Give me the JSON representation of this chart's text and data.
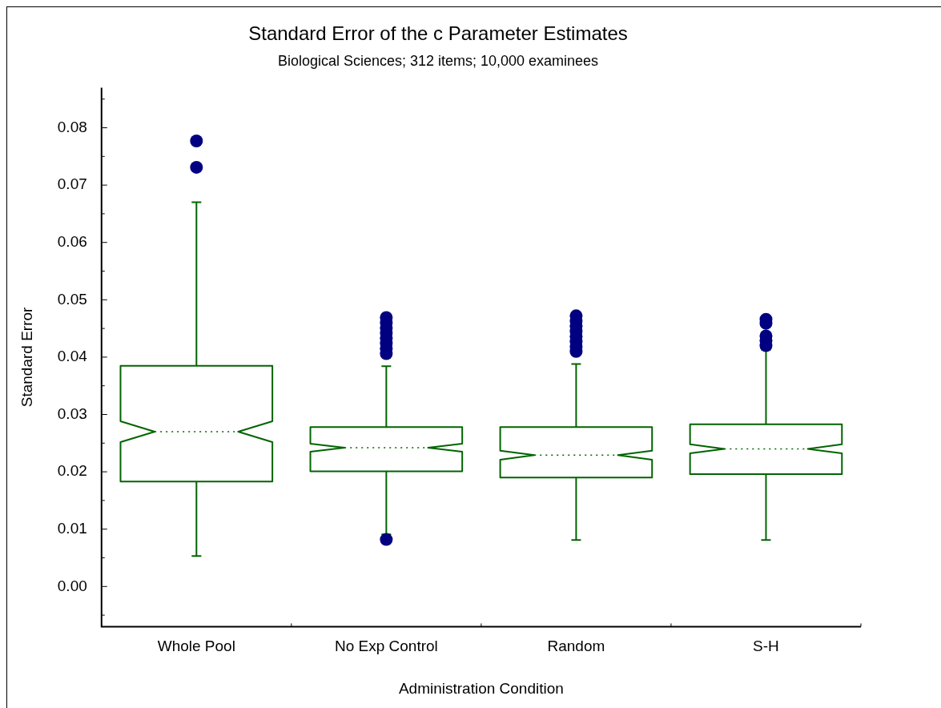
{
  "chart_data": {
    "type": "box",
    "title": "Standard Error of the c Parameter Estimates",
    "subtitle": "Biological Sciences; 312 items; 10,000 examinees",
    "xlabel": "Administration Condition",
    "ylabel": "Standard Error",
    "categories": [
      "Whole Pool",
      "No Exp Control",
      "Random",
      "S-H"
    ],
    "series": [
      {
        "color": "#006400",
        "boxes": [
          {
            "low": 0.0053,
            "q1": 0.0183,
            "median": 0.027,
            "q3": 0.0385,
            "high": 0.067,
            "outliers": [
              0.0777,
              0.0731
            ]
          },
          {
            "low": 0.0091,
            "q1": 0.0201,
            "median": 0.0242,
            "q3": 0.0278,
            "high": 0.0384,
            "outliers": [
              0.0469,
              0.046,
              0.0451,
              0.0442,
              0.0433,
              0.0424,
              0.0415,
              0.0406,
              0.0082
            ]
          },
          {
            "low": 0.0081,
            "q1": 0.019,
            "median": 0.0229,
            "q3": 0.0278,
            "high": 0.0388,
            "outliers": [
              0.0472,
              0.0463,
              0.0454,
              0.0445,
              0.0436,
              0.0427,
              0.0418,
              0.041
            ]
          },
          {
            "low": 0.0081,
            "q1": 0.0196,
            "median": 0.024,
            "q3": 0.0283,
            "high": 0.0413,
            "outliers": [
              0.0466,
              0.0459,
              0.0437,
              0.0429,
              0.042
            ]
          }
        ]
      }
    ],
    "ylim": [
      -0.007,
      0.087
    ],
    "yticks": [
      {
        "value": -0.005,
        "label": null
      },
      {
        "value": 0,
        "label": "0.00"
      },
      {
        "value": 0.005,
        "label": null
      },
      0.01,
      {
        "value": 0.015,
        "label": null
      },
      0.02,
      {
        "value": 0.025,
        "label": null
      },
      0.03,
      {
        "value": 0.035,
        "label": null
      },
      0.04,
      {
        "value": 0.045,
        "label": null
      },
      0.05,
      {
        "value": 0.055,
        "label": null
      },
      0.06,
      {
        "value": 0.065,
        "label": null
      },
      0.07,
      {
        "value": 0.075,
        "label": null
      },
      0.08,
      {
        "value": 0.085,
        "label": null
      }
    ],
    "grid": false,
    "legend": false,
    "marker": "circle"
  }
}
